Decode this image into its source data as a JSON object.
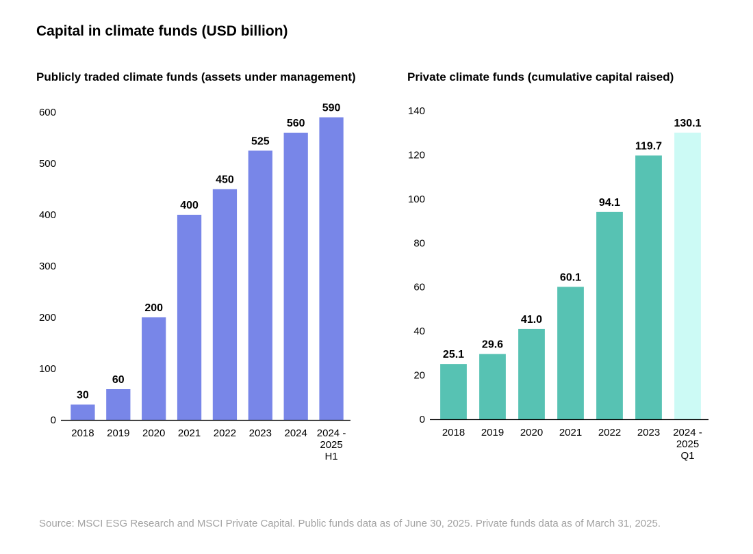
{
  "title": "Capital in climate funds (USD billion)",
  "source": "Source: MSCI ESG Research and MSCI Private Capital. Public funds data as of June 30, 2025. Private funds data as of March 31, 2025.",
  "chart_data": [
    {
      "type": "bar",
      "title": "Publicly traded climate funds (assets under management)",
      "categories": [
        "2018",
        "2019",
        "2020",
        "2021",
        "2022",
        "2023",
        "2024",
        "2024 - 2025 H1"
      ],
      "category_lines": [
        [
          "2018"
        ],
        [
          "2019"
        ],
        [
          "2020"
        ],
        [
          "2021"
        ],
        [
          "2022"
        ],
        [
          "2023"
        ],
        [
          "2024"
        ],
        [
          "2024 -",
          "2025",
          "H1"
        ]
      ],
      "values": [
        30,
        60,
        200,
        400,
        450,
        525,
        560,
        590
      ],
      "value_labels": [
        "30",
        "60",
        "200",
        "400",
        "450",
        "525",
        "560",
        "590"
      ],
      "yticks": [
        0,
        100,
        200,
        300,
        400,
        500,
        600
      ],
      "ylim": [
        0,
        600
      ],
      "grid": false,
      "colors": [
        "#7886e8",
        "#7886e8",
        "#7886e8",
        "#7886e8",
        "#7886e8",
        "#7886e8",
        "#7886e8",
        "#7886e8"
      ]
    },
    {
      "type": "bar",
      "title": "Private climate funds (cumulative capital raised)",
      "categories": [
        "2018",
        "2019",
        "2020",
        "2021",
        "2022",
        "2023",
        "2024 - 2025 Q1"
      ],
      "category_lines": [
        [
          "2018"
        ],
        [
          "2019"
        ],
        [
          "2020"
        ],
        [
          "2021"
        ],
        [
          "2022"
        ],
        [
          "2023"
        ],
        [
          "2024 -",
          "2025",
          "Q1"
        ]
      ],
      "values": [
        25.1,
        29.6,
        41.0,
        60.1,
        94.1,
        119.7,
        130.1
      ],
      "value_labels": [
        "25.1",
        "29.6",
        "41.0",
        "60.1",
        "94.1",
        "119.7",
        "130.1"
      ],
      "yticks": [
        0,
        20,
        40,
        60,
        80,
        100,
        120,
        140
      ],
      "ylim": [
        0,
        140
      ],
      "grid": false,
      "colors": [
        "#57c2b3",
        "#57c2b3",
        "#57c2b3",
        "#57c2b3",
        "#57c2b3",
        "#57c2b3",
        "#ccfaf5"
      ]
    }
  ]
}
